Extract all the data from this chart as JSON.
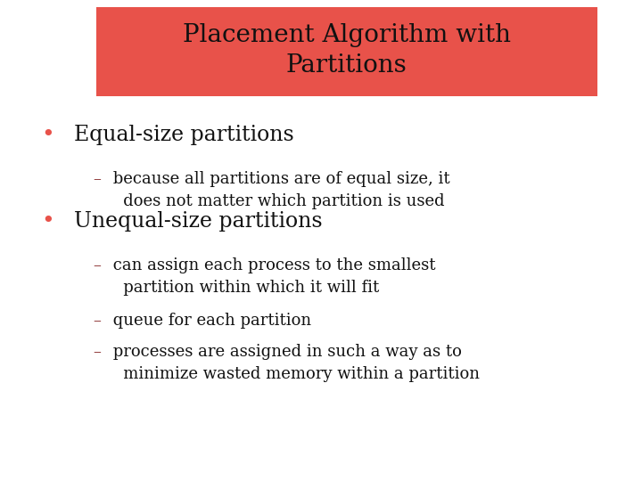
{
  "title_line1": "Placement Algorithm with",
  "title_line2": "Partitions",
  "title_bg_color": "#E8524A",
  "title_text_color": "#111111",
  "title_fontsize": 20,
  "bg_color": "#ffffff",
  "bullet_color": "#111111",
  "bullet_dot_color": "#E8524A",
  "dash_color": "#8B3030",
  "sub_text_color": "#111111",
  "bullet1": "Equal-size partitions",
  "bullet1_fontsize": 17,
  "sub1_dash": "–",
  "sub1_text": " because all partitions are of equal size, it\n   does not matter which partition is used",
  "sub1_fontsize": 13,
  "bullet2": "Unequal-size partitions",
  "bullet2_fontsize": 17,
  "sub2a_dash": "–",
  "sub2a_text": " can assign each process to the smallest\n   partition within which it will fit",
  "sub2b_dash": "–",
  "sub2b_text": " queue for each partition",
  "sub2c_dash": "–",
  "sub2c_text": " processes are assigned in such a way as to\n   minimize wasted memory within a partition",
  "sub2_fontsize": 13
}
